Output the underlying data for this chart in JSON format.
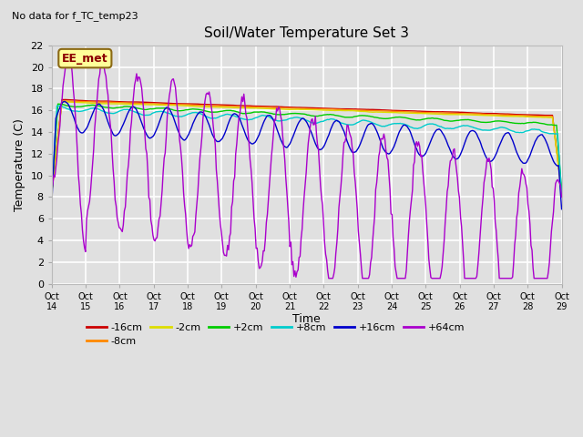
{
  "title": "Soil/Water Temperature Set 3",
  "subtitle": "No data for f_TC_temp23",
  "xlabel": "Time",
  "ylabel": "Temperature (C)",
  "annotation": "EE_met",
  "ylim": [
    0,
    22
  ],
  "yticks": [
    0,
    2,
    4,
    6,
    8,
    10,
    12,
    14,
    16,
    18,
    20,
    22
  ],
  "xtick_labels": [
    "Oct\n14",
    "Oct\n15",
    "Oct\n16",
    "Oct\n17",
    "Oct\n18",
    "Oct\n19",
    "Oct\n20",
    "Oct\n21",
    "Oct\n22",
    "Oct\n23",
    "Oct\n24",
    "Oct\n25",
    "Oct\n26",
    "Oct\n27",
    "Oct\n28",
    "Oct\n29"
  ],
  "series_colors": {
    "-16cm": "#cc0000",
    "-8cm": "#ff8800",
    "-2cm": "#dddd00",
    "+2cm": "#00cc00",
    "+8cm": "#00cccc",
    "+16cm": "#0000cc",
    "+64cm": "#aa00cc"
  },
  "background_color": "#e0e0e0",
  "grid_color": "#ffffff",
  "n_points": 500
}
